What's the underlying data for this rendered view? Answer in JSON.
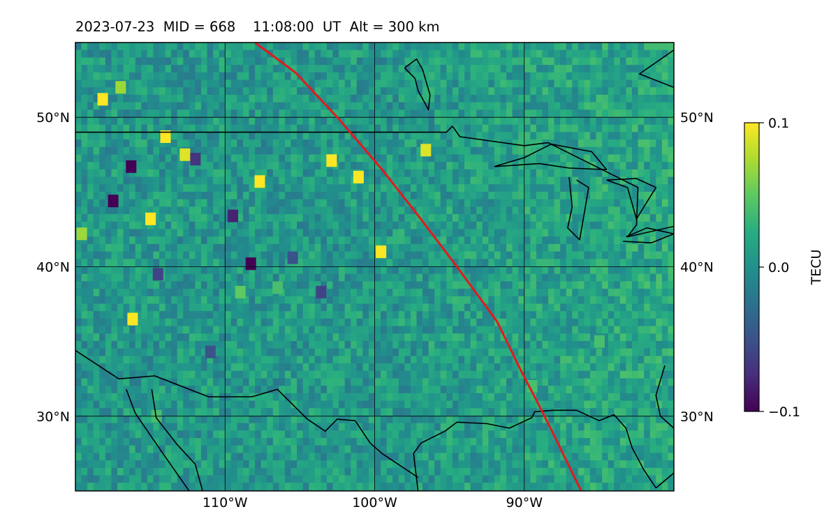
{
  "chart_data": {
    "type": "heatmap",
    "title": "2023-07-23  MID = 668    11:08:00  UT  Alt = 300 km",
    "xlabel": "",
    "ylabel": "",
    "xlim": [
      -120,
      -80
    ],
    "ylim": [
      25,
      55
    ],
    "grid": true,
    "x_ticks": [
      -110,
      -100,
      -90
    ],
    "x_tick_labels": [
      "110°W",
      "100°W",
      "90°W"
    ],
    "y_ticks": [
      30,
      40,
      50
    ],
    "y_tick_labels": [
      "30°N",
      "40°N",
      "50°N"
    ],
    "colorbar": {
      "label": "TECU",
      "vmin": -0.1,
      "vmax": 0.1,
      "ticks": [
        0.1,
        0.0,
        -0.1
      ],
      "tick_labels": [
        "0.1",
        "0.0",
        "−0.1"
      ],
      "colormap": "viridis"
    },
    "background_value": 0.01,
    "hotspots": [
      {
        "lon": -118.2,
        "lat": 51.2,
        "value": 0.1
      },
      {
        "lon": -117.0,
        "lat": 52.0,
        "value": 0.07
      },
      {
        "lon": -114.0,
        "lat": 48.7,
        "value": 0.1
      },
      {
        "lon": -112.7,
        "lat": 47.5,
        "value": 0.09
      },
      {
        "lon": -102.9,
        "lat": 47.1,
        "value": 0.1
      },
      {
        "lon": -107.7,
        "lat": 45.7,
        "value": 0.1
      },
      {
        "lon": -101.1,
        "lat": 46.0,
        "value": 0.1
      },
      {
        "lon": -96.6,
        "lat": 47.8,
        "value": 0.09
      },
      {
        "lon": -115.0,
        "lat": 43.2,
        "value": 0.1
      },
      {
        "lon": -119.6,
        "lat": 42.2,
        "value": 0.07
      },
      {
        "lon": -99.6,
        "lat": 41.0,
        "value": 0.1
      },
      {
        "lon": -116.2,
        "lat": 36.5,
        "value": 0.1
      },
      {
        "lon": -109.0,
        "lat": 38.3,
        "value": 0.05
      },
      {
        "lon": -106.5,
        "lat": 38.6,
        "value": 0.04
      },
      {
        "lon": -116.3,
        "lat": 46.7,
        "value": -0.1
      },
      {
        "lon": -112.0,
        "lat": 47.2,
        "value": -0.07
      },
      {
        "lon": -117.5,
        "lat": 44.4,
        "value": -0.1
      },
      {
        "lon": -109.5,
        "lat": 43.4,
        "value": -0.08
      },
      {
        "lon": -108.3,
        "lat": 40.2,
        "value": -0.1
      },
      {
        "lon": -114.5,
        "lat": 39.5,
        "value": -0.06
      },
      {
        "lon": -105.5,
        "lat": 40.6,
        "value": -0.05
      },
      {
        "lon": -111.0,
        "lat": 34.3,
        "value": -0.05
      },
      {
        "lon": -103.6,
        "lat": 38.3,
        "value": -0.06
      },
      {
        "lon": -114.6,
        "lat": 30.0,
        "value": 0.04
      },
      {
        "lon": -89.5,
        "lat": 32.0,
        "value": 0.04
      },
      {
        "lon": -85.0,
        "lat": 35.0,
        "value": 0.04
      }
    ],
    "track_line": {
      "color": "#e31a1c",
      "points": [
        [
          -108.0,
          55.0
        ],
        [
          -105.3,
          53.0
        ],
        [
          -102.5,
          50.0
        ],
        [
          -99.5,
          46.5
        ],
        [
          -97.0,
          43.3
        ],
        [
          -94.5,
          40.0
        ],
        [
          -91.8,
          36.3
        ],
        [
          -90.2,
          33.0
        ],
        [
          -89.0,
          30.7
        ],
        [
          -87.9,
          28.5
        ],
        [
          -86.2,
          25.0
        ]
      ]
    },
    "border_lines": [
      {
        "name": "canada-us-border",
        "points": [
          [
            -120,
            49
          ],
          [
            -95.2,
            49
          ],
          [
            -94.8,
            49.4
          ],
          [
            -94.3,
            48.7
          ],
          [
            -90,
            48.1
          ],
          [
            -88.4,
            48.3
          ],
          [
            -84.8,
            46.5
          ],
          [
            -82.4,
            45.3
          ],
          [
            -82.5,
            42.8
          ],
          [
            -83.1,
            42.0
          ],
          [
            -80,
            42.7
          ]
        ]
      },
      {
        "name": "us-mexico-border",
        "points": [
          [
            -120,
            34.4
          ],
          [
            -117.1,
            32.5
          ],
          [
            -114.7,
            32.7
          ],
          [
            -111.1,
            31.3
          ],
          [
            -108.2,
            31.3
          ],
          [
            -106.5,
            31.8
          ],
          [
            -104.5,
            29.8
          ],
          [
            -103.3,
            29.0
          ],
          [
            -102.5,
            29.8
          ],
          [
            -101.3,
            29.7
          ],
          [
            -100.3,
            28.2
          ],
          [
            -99.5,
            27.5
          ],
          [
            -97.1,
            25.9
          ]
        ]
      },
      {
        "name": "gulf-coast",
        "points": [
          [
            -97.1,
            25.0
          ],
          [
            -97.4,
            27.5
          ],
          [
            -96.9,
            28.2
          ],
          [
            -95.3,
            29.0
          ],
          [
            -94.5,
            29.6
          ],
          [
            -92.5,
            29.5
          ],
          [
            -91.0,
            29.2
          ],
          [
            -89.5,
            29.9
          ],
          [
            -89.3,
            30.3
          ],
          [
            -88.0,
            30.4
          ],
          [
            -86.5,
            30.4
          ],
          [
            -85.0,
            29.7
          ],
          [
            -84.0,
            30.1
          ],
          [
            -83.2,
            29.2
          ],
          [
            -82.8,
            27.9
          ],
          [
            -82.0,
            26.4
          ],
          [
            -81.2,
            25.2
          ],
          [
            -80.0,
            26.2
          ]
        ]
      },
      {
        "name": "atlantic-coast",
        "points": [
          [
            -80.6,
            33.4
          ],
          [
            -81.2,
            31.4
          ],
          [
            -80.9,
            30.0
          ],
          [
            -80.0,
            29.2
          ]
        ]
      },
      {
        "name": "baja-california",
        "points": [
          [
            -114.9,
            31.8
          ],
          [
            -114.6,
            29.9
          ],
          [
            -113.2,
            28.1
          ],
          [
            -112.0,
            26.8
          ],
          [
            -111.5,
            25.0
          ]
        ]
      },
      {
        "name": "baja-coast-west",
        "points": [
          [
            -116.6,
            31.8
          ],
          [
            -116.0,
            30.2
          ],
          [
            -114.7,
            28.3
          ],
          [
            -113.8,
            27.0
          ],
          [
            -112.4,
            25.0
          ]
        ]
      },
      {
        "name": "hudson-bay",
        "points": [
          [
            -79.0,
            55.0
          ],
          [
            -80.0,
            54.5
          ],
          [
            -82.3,
            52.9
          ],
          [
            -80.0,
            52.0
          ]
        ]
      },
      {
        "name": "lake-winnipeg",
        "points": [
          [
            -98.0,
            53.3
          ],
          [
            -97.2,
            53.9
          ],
          [
            -96.8,
            53.2
          ],
          [
            -96.3,
            51.5
          ],
          [
            -96.4,
            50.5
          ],
          [
            -97.1,
            51.8
          ],
          [
            -97.3,
            52.6
          ],
          [
            -98.0,
            53.3
          ]
        ]
      },
      {
        "name": "lake-superior",
        "points": [
          [
            -92.0,
            46.7
          ],
          [
            -90.0,
            47.3
          ],
          [
            -88.2,
            48.2
          ],
          [
            -85.5,
            47.7
          ],
          [
            -84.5,
            46.5
          ],
          [
            -87.0,
            46.6
          ],
          [
            -89.0,
            46.9
          ],
          [
            -92.0,
            46.7
          ]
        ]
      },
      {
        "name": "lake-michigan",
        "points": [
          [
            -87.0,
            46.0
          ],
          [
            -86.8,
            44.0
          ],
          [
            -87.1,
            42.6
          ],
          [
            -86.3,
            41.8
          ],
          [
            -86.0,
            43.5
          ],
          [
            -85.7,
            45.3
          ],
          [
            -86.5,
            45.8
          ]
        ]
      },
      {
        "name": "lake-huron",
        "points": [
          [
            -84.5,
            45.8
          ],
          [
            -83.1,
            45.3
          ],
          [
            -82.5,
            43.2
          ],
          [
            -81.7,
            44.5
          ],
          [
            -81.2,
            45.3
          ],
          [
            -82.5,
            45.9
          ],
          [
            -84.5,
            45.8
          ]
        ]
      },
      {
        "name": "lake-erie",
        "points": [
          [
            -83.4,
            41.7
          ],
          [
            -81.5,
            41.6
          ],
          [
            -80.0,
            42.2
          ],
          [
            -81.8,
            42.6
          ],
          [
            -83.2,
            42.0
          ]
        ]
      }
    ]
  }
}
